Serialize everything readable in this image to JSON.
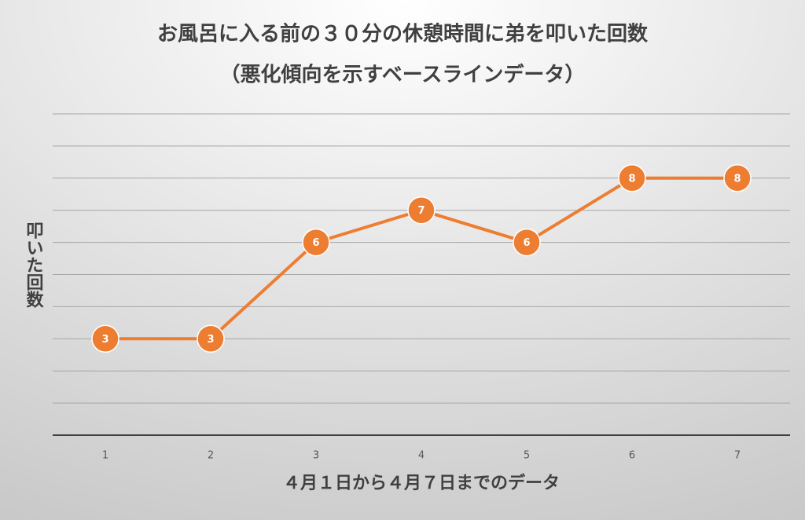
{
  "chart_data": {
    "type": "line",
    "title": "お風呂に入る前の３０分の休憩時間に弟を叩いた回数",
    "subtitle": "（悪化傾向を示すベースラインデータ）",
    "x_label": "４月１日から４月７日までのデータ",
    "y_label": "叩いた回数",
    "categories": [
      "1",
      "2",
      "3",
      "4",
      "5",
      "6",
      "7"
    ],
    "values": [
      3,
      3,
      6,
      7,
      6,
      8,
      8
    ],
    "color": "#ed7d31",
    "ylim": [
      0,
      10
    ],
    "yticks": [
      0,
      1,
      2,
      3,
      4,
      5,
      6,
      7,
      8,
      9,
      10
    ],
    "grid": true
  }
}
